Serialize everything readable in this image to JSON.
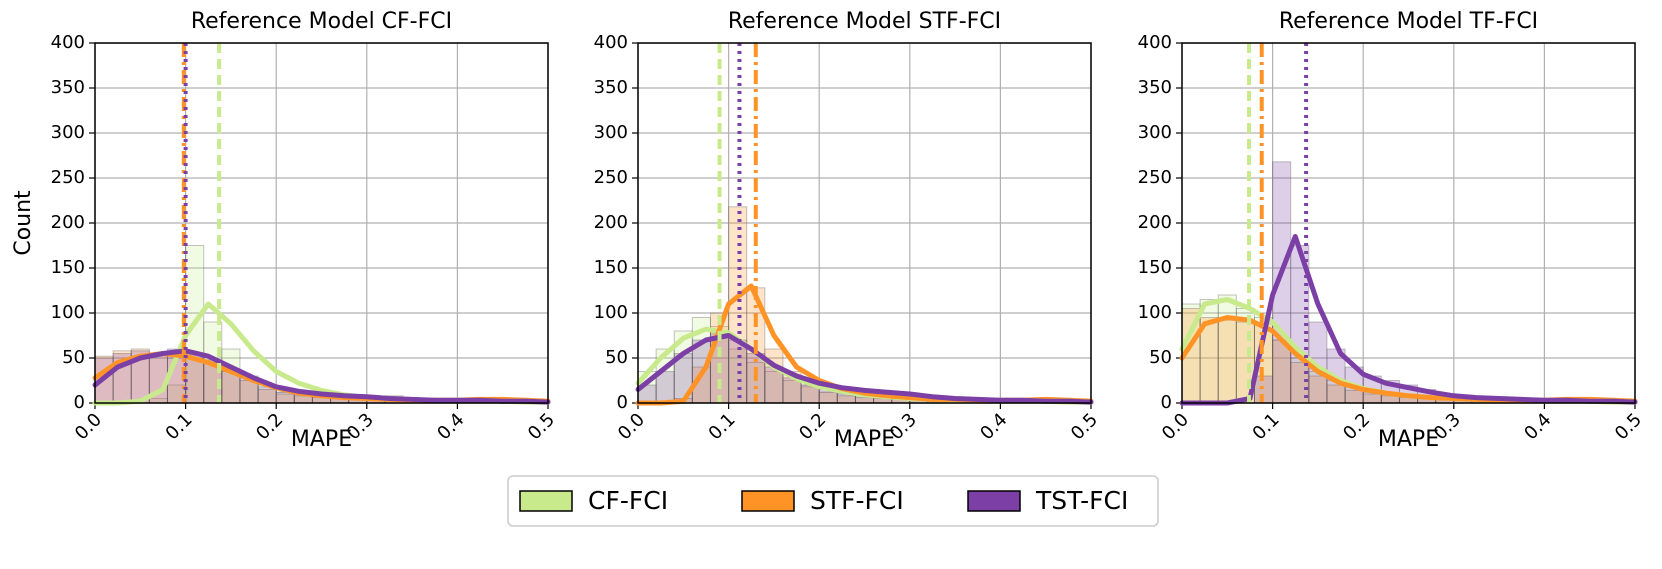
{
  "chart_data": [
    {
      "type": "histogram",
      "title": "Reference Model CF-FCI",
      "xlabel": "MAPE",
      "ylabel": "Count",
      "xlim": [
        0,
        0.5
      ],
      "ylim": [
        0,
        400
      ],
      "xticks": [
        {
          "value": 0,
          "label": "0.0"
        },
        0.1,
        0.2,
        0.3,
        0.4,
        0.5
      ],
      "yticks": [
        0,
        50,
        100,
        150,
        200,
        250,
        300,
        350,
        400
      ],
      "grid": true,
      "bins": [
        0,
        0.02,
        0.04,
        0.06,
        0.08,
        0.1,
        0.12,
        0.14,
        0.16,
        0.18,
        0.2,
        0.22,
        0.24,
        0.26,
        0.28,
        0.3,
        0.32,
        0.34,
        0.36,
        0.38,
        0.4,
        0.42,
        0.44,
        0.46,
        0.48,
        0.5
      ],
      "kde_x": [
        0,
        0.025,
        0.05,
        0.075,
        0.1,
        0.125,
        0.15,
        0.175,
        0.2,
        0.225,
        0.25,
        0.275,
        0.3,
        0.325,
        0.35,
        0.375,
        0.4,
        0.425,
        0.45,
        0.475,
        0.5
      ],
      "series": [
        {
          "name": "CF-FCI",
          "color": "#c8ea8c",
          "linestyle": "dashed",
          "mean": 0.137,
          "values": [
            0,
            0,
            0,
            5,
            20,
            175,
            90,
            60,
            30,
            20,
            12,
            10,
            8,
            6,
            5,
            4,
            8,
            3,
            2,
            2,
            2,
            1,
            1,
            1,
            1
          ],
          "kde": [
            0,
            0,
            2,
            15,
            75,
            110,
            88,
            58,
            35,
            22,
            14,
            9,
            6,
            4,
            3,
            3,
            2,
            2,
            2,
            1,
            1
          ]
        },
        {
          "name": "STF-FCI",
          "color": "#ff9326",
          "linestyle": "dashdot",
          "mean": 0.098,
          "values": [
            52,
            58,
            60,
            55,
            50,
            50,
            45,
            35,
            25,
            15,
            10,
            8,
            6,
            5,
            4,
            3,
            3,
            2,
            2,
            2,
            3,
            4,
            3,
            2,
            2
          ],
          "kde": [
            28,
            45,
            52,
            55,
            52,
            45,
            35,
            25,
            17,
            11,
            8,
            6,
            5,
            4,
            3,
            3,
            3,
            4,
            4,
            3,
            2
          ]
        },
        {
          "name": "TST-FCI",
          "color": "#7b3fa6",
          "linestyle": "dotted",
          "mean": 0.1,
          "values": [
            50,
            55,
            58,
            55,
            60,
            55,
            48,
            38,
            28,
            18,
            12,
            10,
            9,
            7,
            5,
            4,
            3,
            3,
            2,
            2,
            2,
            2,
            2,
            1,
            1
          ],
          "kde": [
            20,
            40,
            50,
            55,
            58,
            52,
            40,
            28,
            18,
            13,
            10,
            8,
            7,
            5,
            4,
            3,
            3,
            3,
            2,
            2,
            1
          ]
        }
      ]
    },
    {
      "type": "histogram",
      "title": "Reference Model STF-FCI",
      "xlabel": "MAPE",
      "xlim": [
        0,
        0.5
      ],
      "ylim": [
        0,
        400
      ],
      "xticks": [
        {
          "value": 0,
          "label": "0.0"
        },
        0.1,
        0.2,
        0.3,
        0.4,
        0.5
      ],
      "yticks": [
        0,
        50,
        100,
        150,
        200,
        250,
        300,
        350,
        400
      ],
      "grid": true,
      "bins": [
        0,
        0.02,
        0.04,
        0.06,
        0.08,
        0.1,
        0.12,
        0.14,
        0.16,
        0.18,
        0.2,
        0.22,
        0.24,
        0.26,
        0.28,
        0.3,
        0.32,
        0.34,
        0.36,
        0.38,
        0.4,
        0.42,
        0.44,
        0.46,
        0.48,
        0.5
      ],
      "kde_x": [
        0,
        0.025,
        0.05,
        0.075,
        0.1,
        0.125,
        0.15,
        0.175,
        0.2,
        0.225,
        0.25,
        0.275,
        0.3,
        0.325,
        0.35,
        0.375,
        0.4,
        0.425,
        0.45,
        0.475,
        0.5
      ],
      "series": [
        {
          "name": "CF-FCI",
          "color": "#c8ea8c",
          "linestyle": "dashed",
          "mean": 0.09,
          "values": [
            35,
            60,
            80,
            95,
            85,
            60,
            45,
            35,
            25,
            18,
            12,
            10,
            8,
            6,
            5,
            4,
            3,
            3,
            2,
            2,
            2,
            2,
            1,
            1,
            1
          ],
          "kde": [
            22,
            50,
            72,
            82,
            78,
            60,
            40,
            27,
            18,
            13,
            9,
            7,
            5,
            4,
            3,
            3,
            2,
            2,
            2,
            1,
            1
          ]
        },
        {
          "name": "STF-FCI",
          "color": "#ff9326",
          "linestyle": "dashdot",
          "mean": 0.13,
          "values": [
            0,
            0,
            5,
            40,
            100,
            218,
            128,
            60,
            35,
            20,
            12,
            8,
            6,
            5,
            4,
            3,
            3,
            2,
            2,
            2,
            2,
            3,
            2,
            2,
            1
          ],
          "kde": [
            0,
            0,
            2,
            40,
            110,
            130,
            75,
            40,
            25,
            16,
            11,
            8,
            6,
            4,
            4,
            3,
            3,
            3,
            4,
            3,
            2
          ]
        },
        {
          "name": "TST-FCI",
          "color": "#7b3fa6",
          "linestyle": "dotted",
          "mean": 0.112,
          "values": [
            20,
            35,
            55,
            70,
            80,
            70,
            55,
            40,
            28,
            20,
            15,
            12,
            10,
            8,
            6,
            4,
            3,
            3,
            2,
            2,
            2,
            2,
            1,
            1,
            1
          ],
          "kde": [
            15,
            35,
            55,
            70,
            75,
            60,
            42,
            30,
            22,
            17,
            14,
            12,
            10,
            7,
            5,
            4,
            3,
            3,
            2,
            2,
            1
          ]
        }
      ]
    },
    {
      "type": "histogram",
      "title": "Reference Model TF-FCI",
      "xlabel": "MAPE",
      "xlim": [
        0,
        0.5
      ],
      "ylim": [
        0,
        400
      ],
      "xticks": [
        {
          "value": 0,
          "label": "0.0"
        },
        0.1,
        0.2,
        0.3,
        0.4,
        0.5
      ],
      "yticks": [
        0,
        50,
        100,
        150,
        200,
        250,
        300,
        350,
        400
      ],
      "grid": true,
      "bins": [
        0,
        0.02,
        0.04,
        0.06,
        0.08,
        0.1,
        0.12,
        0.14,
        0.16,
        0.18,
        0.2,
        0.22,
        0.24,
        0.26,
        0.28,
        0.3,
        0.32,
        0.34,
        0.36,
        0.38,
        0.4,
        0.42,
        0.44,
        0.46,
        0.48,
        0.5
      ],
      "kde_x": [
        0,
        0.025,
        0.05,
        0.075,
        0.1,
        0.125,
        0.15,
        0.175,
        0.2,
        0.225,
        0.25,
        0.275,
        0.3,
        0.325,
        0.35,
        0.375,
        0.4,
        0.425,
        0.45,
        0.475,
        0.5
      ],
      "series": [
        {
          "name": "CF-FCI",
          "color": "#c8ea8c",
          "linestyle": "dashed",
          "mean": 0.074,
          "values": [
            110,
            115,
            120,
            105,
            95,
            70,
            50,
            35,
            25,
            18,
            12,
            10,
            8,
            6,
            5,
            4,
            3,
            3,
            2,
            2,
            2,
            2,
            1,
            1,
            1
          ],
          "kde": [
            60,
            110,
            115,
            105,
            90,
            62,
            40,
            25,
            16,
            11,
            8,
            6,
            5,
            4,
            3,
            3,
            2,
            2,
            2,
            1,
            1
          ]
        },
        {
          "name": "STF-FCI",
          "color": "#ff9326",
          "linestyle": "dashdot",
          "mean": 0.088,
          "values": [
            105,
            95,
            92,
            90,
            88,
            70,
            45,
            30,
            20,
            14,
            10,
            8,
            6,
            5,
            4,
            3,
            3,
            2,
            2,
            2,
            3,
            3,
            2,
            2,
            1
          ],
          "kde": [
            50,
            88,
            95,
            92,
            80,
            55,
            35,
            22,
            15,
            11,
            8,
            6,
            5,
            4,
            3,
            3,
            3,
            4,
            4,
            3,
            2
          ]
        },
        {
          "name": "TST-FCI",
          "color": "#7b3fa6",
          "linestyle": "dotted",
          "mean": 0.137,
          "values": [
            0,
            0,
            0,
            0,
            30,
            268,
            175,
            90,
            60,
            40,
            30,
            25,
            20,
            15,
            10,
            7,
            5,
            4,
            3,
            3,
            2,
            2,
            2,
            1,
            1
          ],
          "kde": [
            0,
            0,
            0,
            5,
            120,
            185,
            110,
            55,
            32,
            22,
            17,
            12,
            8,
            6,
            5,
            4,
            3,
            3,
            2,
            2,
            1
          ]
        }
      ]
    }
  ]
}
